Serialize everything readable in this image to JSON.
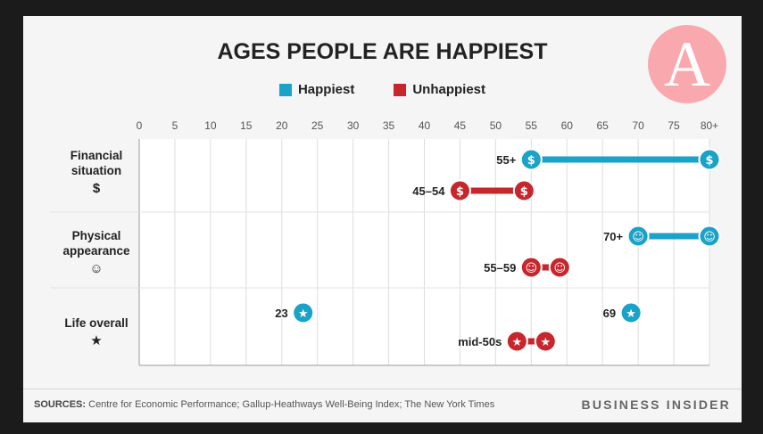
{
  "chart_data": {
    "type": "dumbbell",
    "title": "AGES PEOPLE ARE HAPPIEST",
    "legend": [
      {
        "name": "Happiest",
        "color": "#1ba2c8"
      },
      {
        "name": "Unhappiest",
        "color": "#c8262d"
      }
    ],
    "x_ticks": [
      "0",
      "5",
      "10",
      "15",
      "20",
      "25",
      "30",
      "35",
      "40",
      "45",
      "50",
      "55",
      "60",
      "65",
      "70",
      "75",
      "80+"
    ],
    "xlim": [
      0,
      80
    ],
    "categories": [
      {
        "label_line1": "Financial",
        "label_line2": "situation",
        "icon": "$",
        "icon_name": "dollar-icon",
        "happiest": {
          "start": 55,
          "end": 80,
          "label": "55+"
        },
        "unhappiest": {
          "start": 45,
          "end": 54,
          "label": "45–54"
        }
      },
      {
        "label_line1": "Physical",
        "label_line2": "appearance",
        "icon": "☺",
        "icon_name": "face-icon",
        "happiest": {
          "start": 70,
          "end": 80,
          "label": "70+"
        },
        "unhappiest": {
          "start": 55,
          "end": 59,
          "label": "55–59"
        }
      },
      {
        "label_line1": "Life overall",
        "label_line2": "",
        "icon": "★",
        "icon_name": "star-icon",
        "happiest": [
          {
            "start": 23,
            "end": 23,
            "label": "23"
          },
          {
            "start": 69,
            "end": 69,
            "label": "69"
          }
        ],
        "unhappiest": {
          "start": 53,
          "end": 57,
          "label": "mid-50s"
        }
      }
    ]
  },
  "colors": {
    "happiest": "#1ba2c8",
    "unhappiest": "#c8262d"
  },
  "logo_letter": "A",
  "footer": {
    "sources_label": "SOURCES:",
    "sources_text": "Centre for Economic Performance; Gallup-Heathways Well-Being Index; The New York Times",
    "brand": "BUSINESS INSIDER"
  }
}
